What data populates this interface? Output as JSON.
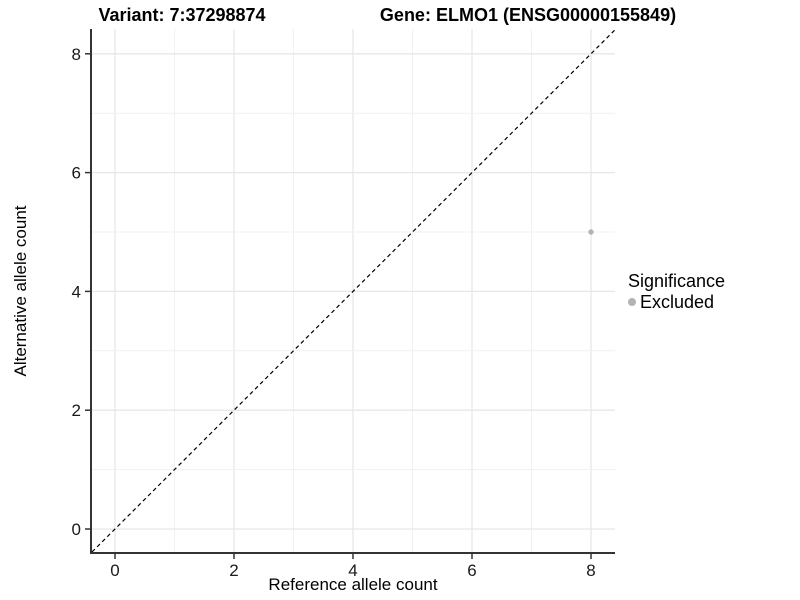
{
  "titles": {
    "variant": "Variant: 7:37298874",
    "gene": "Gene: ELMO1 (ENSG00000155849)"
  },
  "axes": {
    "x_label": "Reference allele count",
    "y_label": "Alternative allele count"
  },
  "legend": {
    "title": "Significance",
    "items": [
      {
        "label": "Excluded",
        "color": "#b3b3b3"
      }
    ]
  },
  "colors": {
    "background": "#ffffff",
    "axis_line": "#333333",
    "tick_mark": "#333333",
    "tick_label": "#1a1a1a",
    "grid_major": "#e7e7e7",
    "grid_minor": "#f1f1f1",
    "identity_line": "#000000",
    "point_excluded": "#b3b3b3"
  },
  "chart_data": {
    "type": "scatter",
    "title": "Variant: 7:37298874 | Gene: ELMO1 (ENSG00000155849)",
    "xlabel": "Reference allele count",
    "ylabel": "Alternative allele count",
    "xlim": [
      -0.4,
      8.4
    ],
    "ylim": [
      -0.4,
      8.4
    ],
    "x_ticks": [
      0,
      2,
      4,
      6,
      8
    ],
    "y_ticks": [
      0,
      2,
      4,
      6,
      8
    ],
    "grid": true,
    "grid_minor_every": 1,
    "legend_position": "right",
    "legend_title": "Significance",
    "series": [
      {
        "name": "Excluded",
        "color": "#b3b3b3",
        "points": [
          {
            "x": 8,
            "y": 5
          }
        ]
      }
    ],
    "reference_line": {
      "type": "identity",
      "equation": "y = x",
      "style": "dashed",
      "color": "#000000"
    }
  }
}
